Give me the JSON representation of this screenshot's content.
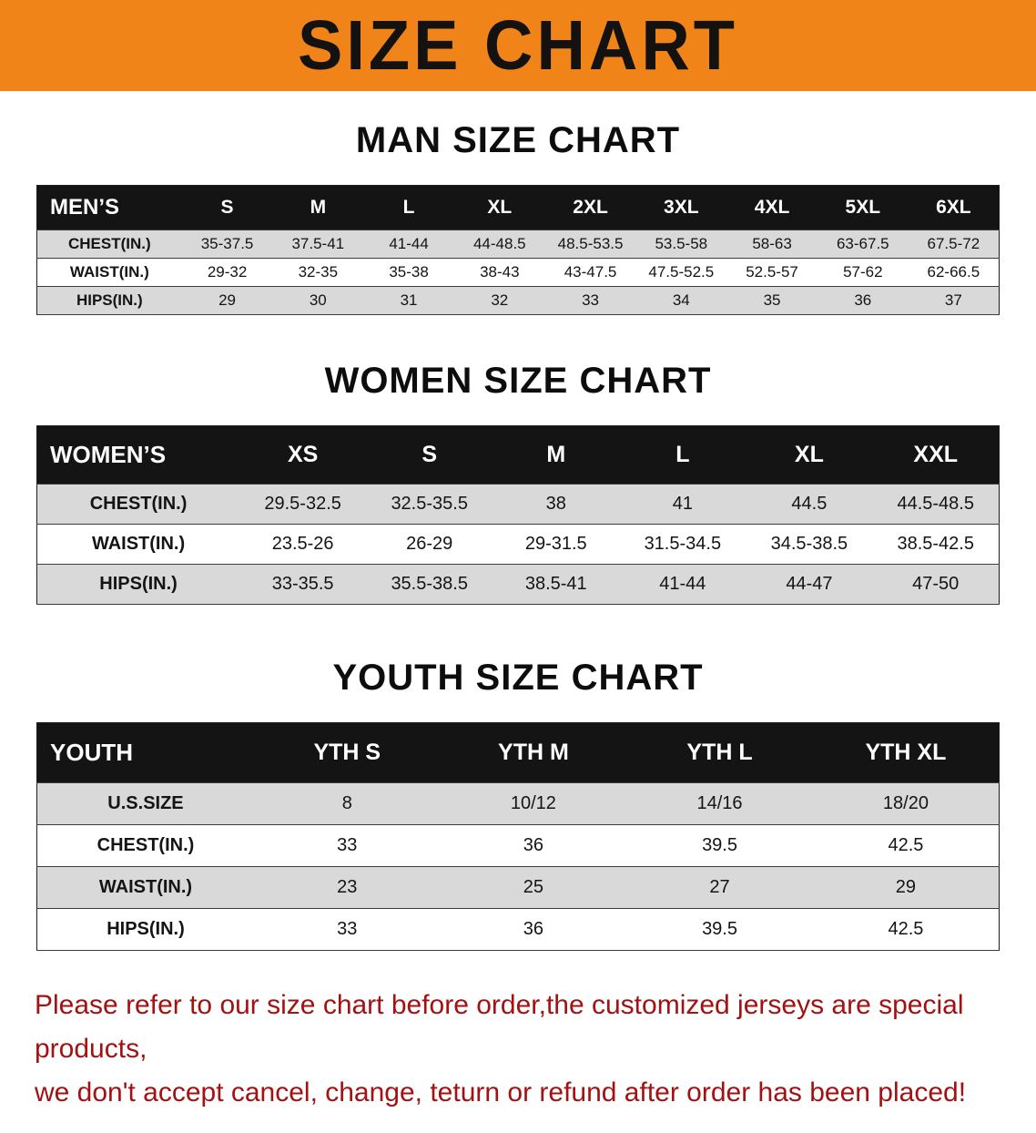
{
  "banner": {
    "title": "SIZE CHART"
  },
  "colors": {
    "banner_bg": "#f08418",
    "header_bg": "#141414",
    "row_shade": "#d9d9d9",
    "footer_text": "#a31212"
  },
  "chart_data": [
    {
      "type": "table",
      "title": "MAN SIZE CHART",
      "columns": [
        "MEN’S",
        "S",
        "M",
        "L",
        "XL",
        "2XL",
        "3XL",
        "4XL",
        "5XL",
        "6XL"
      ],
      "rows": [
        [
          "CHEST(IN.)",
          "35-37.5",
          "37.5-41",
          "41-44",
          "44-48.5",
          "48.5-53.5",
          "53.5-58",
          "58-63",
          "63-67.5",
          "67.5-72"
        ],
        [
          "WAIST(IN.)",
          "29-32",
          "32-35",
          "35-38",
          "38-43",
          "43-47.5",
          "47.5-52.5",
          "52.5-57",
          "57-62",
          "62-66.5"
        ],
        [
          "HIPS(IN.)",
          "29",
          "30",
          "31",
          "32",
          "33",
          "34",
          "35",
          "36",
          "37"
        ]
      ],
      "shaded_rows": [
        0,
        2
      ]
    },
    {
      "type": "table",
      "title": "WOMEN SIZE CHART",
      "columns": [
        "WOMEN’S",
        "XS",
        "S",
        "M",
        "L",
        "XL",
        "XXL"
      ],
      "rows": [
        [
          "CHEST(IN.)",
          "29.5-32.5",
          "32.5-35.5",
          "38",
          "41",
          "44.5",
          "44.5-48.5"
        ],
        [
          "WAIST(IN.)",
          "23.5-26",
          "26-29",
          "29-31.5",
          "31.5-34.5",
          "34.5-38.5",
          "38.5-42.5"
        ],
        [
          "HIPS(IN.)",
          "33-35.5",
          "35.5-38.5",
          "38.5-41",
          "41-44",
          "44-47",
          "47-50"
        ]
      ],
      "shaded_rows": [
        0,
        2
      ]
    },
    {
      "type": "table",
      "title": "YOUTH SIZE CHART",
      "columns": [
        "YOUTH",
        "YTH S",
        "YTH M",
        "YTH L",
        "YTH XL"
      ],
      "rows": [
        [
          "U.S.SIZE",
          "8",
          "10/12",
          "14/16",
          "18/20"
        ],
        [
          "CHEST(IN.)",
          "33",
          "36",
          "39.5",
          "42.5"
        ],
        [
          "WAIST(IN.)",
          "23",
          "25",
          "27",
          "29"
        ],
        [
          "HIPS(IN.)",
          "33",
          "36",
          "39.5",
          "42.5"
        ]
      ],
      "shaded_rows": [
        0,
        2
      ]
    }
  ],
  "footer": {
    "line1": "Please refer to our size chart before order,the customized jerseys are special products,",
    "line2": "we don't accept cancel, change, teturn or refund after order has been placed!"
  }
}
